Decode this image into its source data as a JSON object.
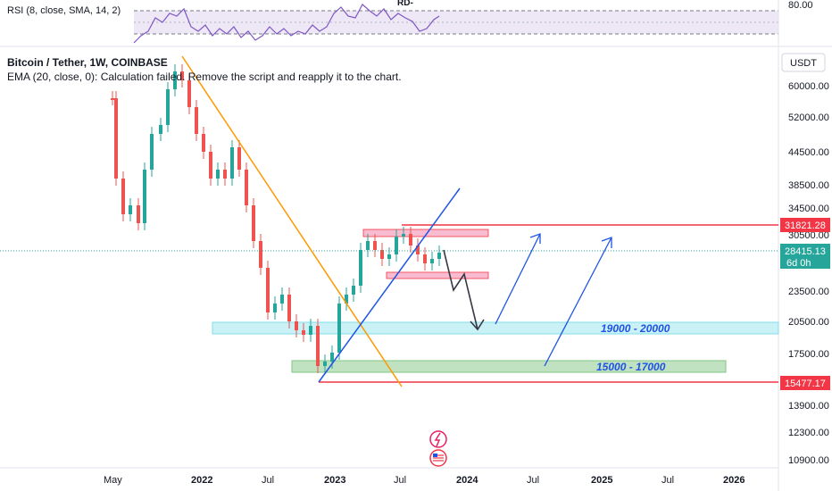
{
  "header": {
    "symbol_title": "Bitcoin / Tether, 1W, COINBASE",
    "ema_legend": "EMA (20, close, 0): Calculation failed. Remove the script and reapply it to the chart.",
    "rsi_legend": "RSI (8, close, SMA, 14, 2)",
    "rsi_tag": "RD-",
    "currency": "USDT"
  },
  "chart_data": {
    "type": "candlestick",
    "price_axis_ticks": [
      "60000.00",
      "52000.00",
      "44500.00",
      "38500.00",
      "34500.00",
      "30500.00",
      "23500.00",
      "20500.00",
      "17500.00",
      "13900.00",
      "12300.00",
      "10900.00"
    ],
    "rsi_axis_ticks": [
      "80.00"
    ],
    "time_axis_ticks": [
      "May",
      "2022",
      "Jul",
      "2023",
      "Jul",
      "2024",
      "Jul",
      "2025",
      "Jul",
      "2026"
    ],
    "last_price": "28415.13",
    "countdown": "6d 0h",
    "resistance_level": "31821.28",
    "support_level": "15477.17",
    "zones": [
      {
        "label": "19000 - 20000",
        "low": 19000,
        "high": 20000
      },
      {
        "label": "15000 - 17000",
        "low": 15000,
        "high": 17000
      }
    ],
    "colors": {
      "up": "#26a69a",
      "down": "#ef5350",
      "trend_down": "#ff9800",
      "trend_up": "#1e53e5",
      "level": "#f23645",
      "zone_top": "#b2ebf2",
      "zone_bottom": "#a5d6a7",
      "rsi": "#7e57c2"
    }
  }
}
